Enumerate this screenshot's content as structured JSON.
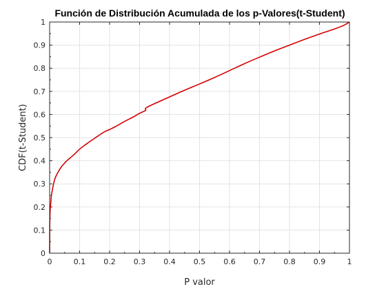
{
  "chart_data": {
    "type": "line",
    "title": "Función de Distribución Acumulada de los p-Valores(t-Student)",
    "xlabel": "P valor",
    "ylabel": "CDF(t-Student)",
    "xlim": [
      0,
      1
    ],
    "ylim": [
      0,
      1
    ],
    "grid": true,
    "xticks": [
      0,
      0.1,
      0.2,
      0.3,
      0.4,
      0.5,
      0.6,
      0.7,
      0.8,
      0.9,
      1
    ],
    "xtick_labels": [
      "0",
      "0.1",
      "0.2",
      "0.3",
      "0.4",
      "0.5",
      "0.6",
      "0.7",
      "0.8",
      "0.9",
      "1"
    ],
    "yticks": [
      0,
      0.1,
      0.2,
      0.3,
      0.4,
      0.5,
      0.6,
      0.7,
      0.8,
      0.9,
      1
    ],
    "ytick_labels": [
      "0",
      "0.1",
      "0.2",
      "0.3",
      "0.4",
      "0.5",
      "0.6",
      "0.7",
      "0.8",
      "0.9",
      "1"
    ],
    "series": [
      {
        "color": "#d40000",
        "x": [
          0,
          0.0005,
          0.001,
          0.002,
          0.004,
          0.006,
          0.01,
          0.015,
          0.02,
          0.03,
          0.04,
          0.05,
          0.06,
          0.08,
          0.1,
          0.12,
          0.15,
          0.18,
          0.2,
          0.22,
          0.25,
          0.28,
          0.3,
          0.32,
          0.321,
          0.35,
          0.4,
          0.45,
          0.5,
          0.55,
          0.6,
          0.65,
          0.7,
          0.75,
          0.8,
          0.85,
          0.9,
          0.95,
          0.98,
          1.0
        ],
        "y": [
          0,
          0.12,
          0.16,
          0.19,
          0.22,
          0.25,
          0.28,
          0.31,
          0.33,
          0.355,
          0.375,
          0.39,
          0.403,
          0.425,
          0.45,
          0.47,
          0.497,
          0.523,
          0.535,
          0.548,
          0.57,
          0.59,
          0.605,
          0.618,
          0.628,
          0.647,
          0.676,
          0.705,
          0.732,
          0.76,
          0.79,
          0.82,
          0.848,
          0.875,
          0.9,
          0.925,
          0.948,
          0.97,
          0.985,
          1.0
        ]
      }
    ]
  }
}
